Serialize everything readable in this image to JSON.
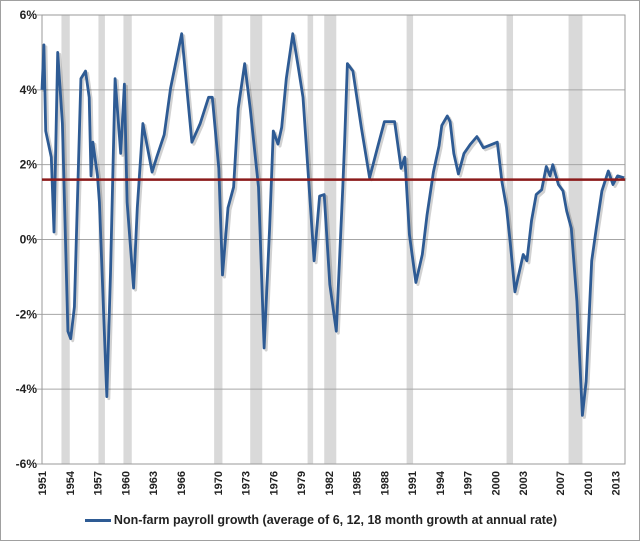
{
  "chart_data": {
    "type": "line",
    "title": "",
    "xlabel": "",
    "ylabel": "",
    "xlim": [
      1951,
      2014
    ],
    "ylim": [
      -6,
      6
    ],
    "y_ticks": [
      -6,
      -4,
      -2,
      0,
      2,
      4,
      6
    ],
    "y_tick_labels": [
      "-6%",
      "-4%",
      "-2%",
      "0%",
      "2%",
      "4%",
      "6%"
    ],
    "x_ticks": [
      1951,
      1954,
      1957,
      1960,
      1963,
      1966,
      1970,
      1973,
      1976,
      1979,
      1982,
      1985,
      1988,
      1991,
      1994,
      1997,
      2000,
      2003,
      2007,
      2010,
      2013
    ],
    "x_tick_labels": [
      "1951",
      "1954",
      "1957",
      "1960",
      "1963",
      "1966",
      "1970",
      "1973",
      "1976",
      "1979",
      "1982",
      "1985",
      "1988",
      "1991",
      "1994",
      "1997",
      "2000",
      "2003",
      "2007",
      "2010",
      "2013"
    ],
    "grid": "horizontal",
    "legend_position": "bottom",
    "reference_line": {
      "value": 1.6,
      "color": "#8b1a1a"
    },
    "recessions": [
      [
        1953.1,
        1954.0
      ],
      [
        1957.1,
        1957.8
      ],
      [
        1959.8,
        1960.7
      ],
      [
        1969.6,
        1970.5
      ],
      [
        1973.5,
        1974.8
      ],
      [
        1979.7,
        1980.3
      ],
      [
        1981.5,
        1982.8
      ],
      [
        1990.4,
        1991.1
      ],
      [
        2001.2,
        2001.9
      ],
      [
        2007.9,
        2009.4
      ]
    ],
    "series": [
      {
        "name": "Non-farm payroll growth (average of 6, 12, 18 month growth at annual rate)",
        "color": "#2e5b94",
        "x": [
          1951.0,
          1951.2,
          1951.4,
          1952.0,
          1952.3,
          1952.7,
          1953.2,
          1953.8,
          1954.1,
          1954.5,
          1955.2,
          1955.7,
          1956.1,
          1956.3,
          1956.5,
          1957.0,
          1957.2,
          1958.0,
          1958.4,
          1958.9,
          1959.5,
          1959.9,
          1960.2,
          1960.9,
          1961.3,
          1961.9,
          1962.9,
          1963.4,
          1964.2,
          1964.9,
          1966.1,
          1967.2,
          1968.1,
          1969.0,
          1969.4,
          1970.1,
          1970.5,
          1971.1,
          1971.7,
          1972.2,
          1972.9,
          1973.5,
          1974.4,
          1975.0,
          1975.6,
          1976.0,
          1976.5,
          1976.9,
          1977.4,
          1978.1,
          1978.7,
          1979.2,
          1979.7,
          1980.4,
          1981.0,
          1981.5,
          1982.1,
          1982.8,
          1983.5,
          1983.7,
          1984.0,
          1984.6,
          1985.5,
          1986.4,
          1987.3,
          1988.0,
          1989.1,
          1989.8,
          1990.2,
          1990.7,
          1991.4,
          1992.1,
          1992.6,
          1993.3,
          1993.9,
          1994.2,
          1994.8,
          1995.1,
          1995.5,
          1996.0,
          1996.6,
          1997.3,
          1998.0,
          1998.7,
          2000.2,
          2000.7,
          2001.2,
          2001.6,
          2002.1,
          2002.5,
          2003.0,
          2003.4,
          2003.9,
          2004.4,
          2005.0,
          2005.5,
          2005.9,
          2006.2,
          2006.8,
          2007.3,
          2007.7,
          2008.2,
          2008.8,
          2009.4,
          2009.8,
          2010.4,
          2010.9,
          2011.5,
          2012.2,
          2012.7,
          2013.2,
          2013.9
        ],
        "y": [
          4.0,
          5.2,
          2.9,
          2.2,
          0.2,
          5.0,
          3.1,
          -2.45,
          -2.65,
          -1.8,
          4.3,
          4.5,
          3.8,
          1.7,
          2.6,
          1.7,
          1.0,
          -4.2,
          -0.9,
          4.3,
          2.3,
          4.15,
          1.0,
          -1.3,
          0.85,
          3.1,
          1.8,
          2.2,
          2.8,
          4.05,
          5.5,
          2.6,
          3.1,
          3.8,
          3.8,
          1.9,
          -0.95,
          0.85,
          1.4,
          3.5,
          4.7,
          3.5,
          1.4,
          -2.9,
          0.3,
          2.9,
          2.55,
          3.0,
          4.3,
          5.5,
          4.6,
          3.8,
          2.0,
          -0.57,
          1.16,
          1.2,
          -1.2,
          -2.45,
          1.4,
          2.6,
          4.7,
          4.5,
          3.0,
          1.65,
          2.5,
          3.15,
          3.15,
          1.9,
          2.2,
          0.13,
          -1.15,
          -0.4,
          0.65,
          1.8,
          2.5,
          3.05,
          3.3,
          3.15,
          2.3,
          1.75,
          2.3,
          2.55,
          2.75,
          2.45,
          2.6,
          1.55,
          0.85,
          -0.1,
          -1.4,
          -0.95,
          -0.4,
          -0.57,
          0.5,
          1.2,
          1.33,
          1.95,
          1.7,
          2.0,
          1.47,
          1.3,
          0.76,
          0.3,
          -1.65,
          -4.7,
          -3.8,
          -0.57,
          0.3,
          1.3,
          1.83,
          1.47,
          1.7,
          1.65
        ]
      }
    ]
  }
}
